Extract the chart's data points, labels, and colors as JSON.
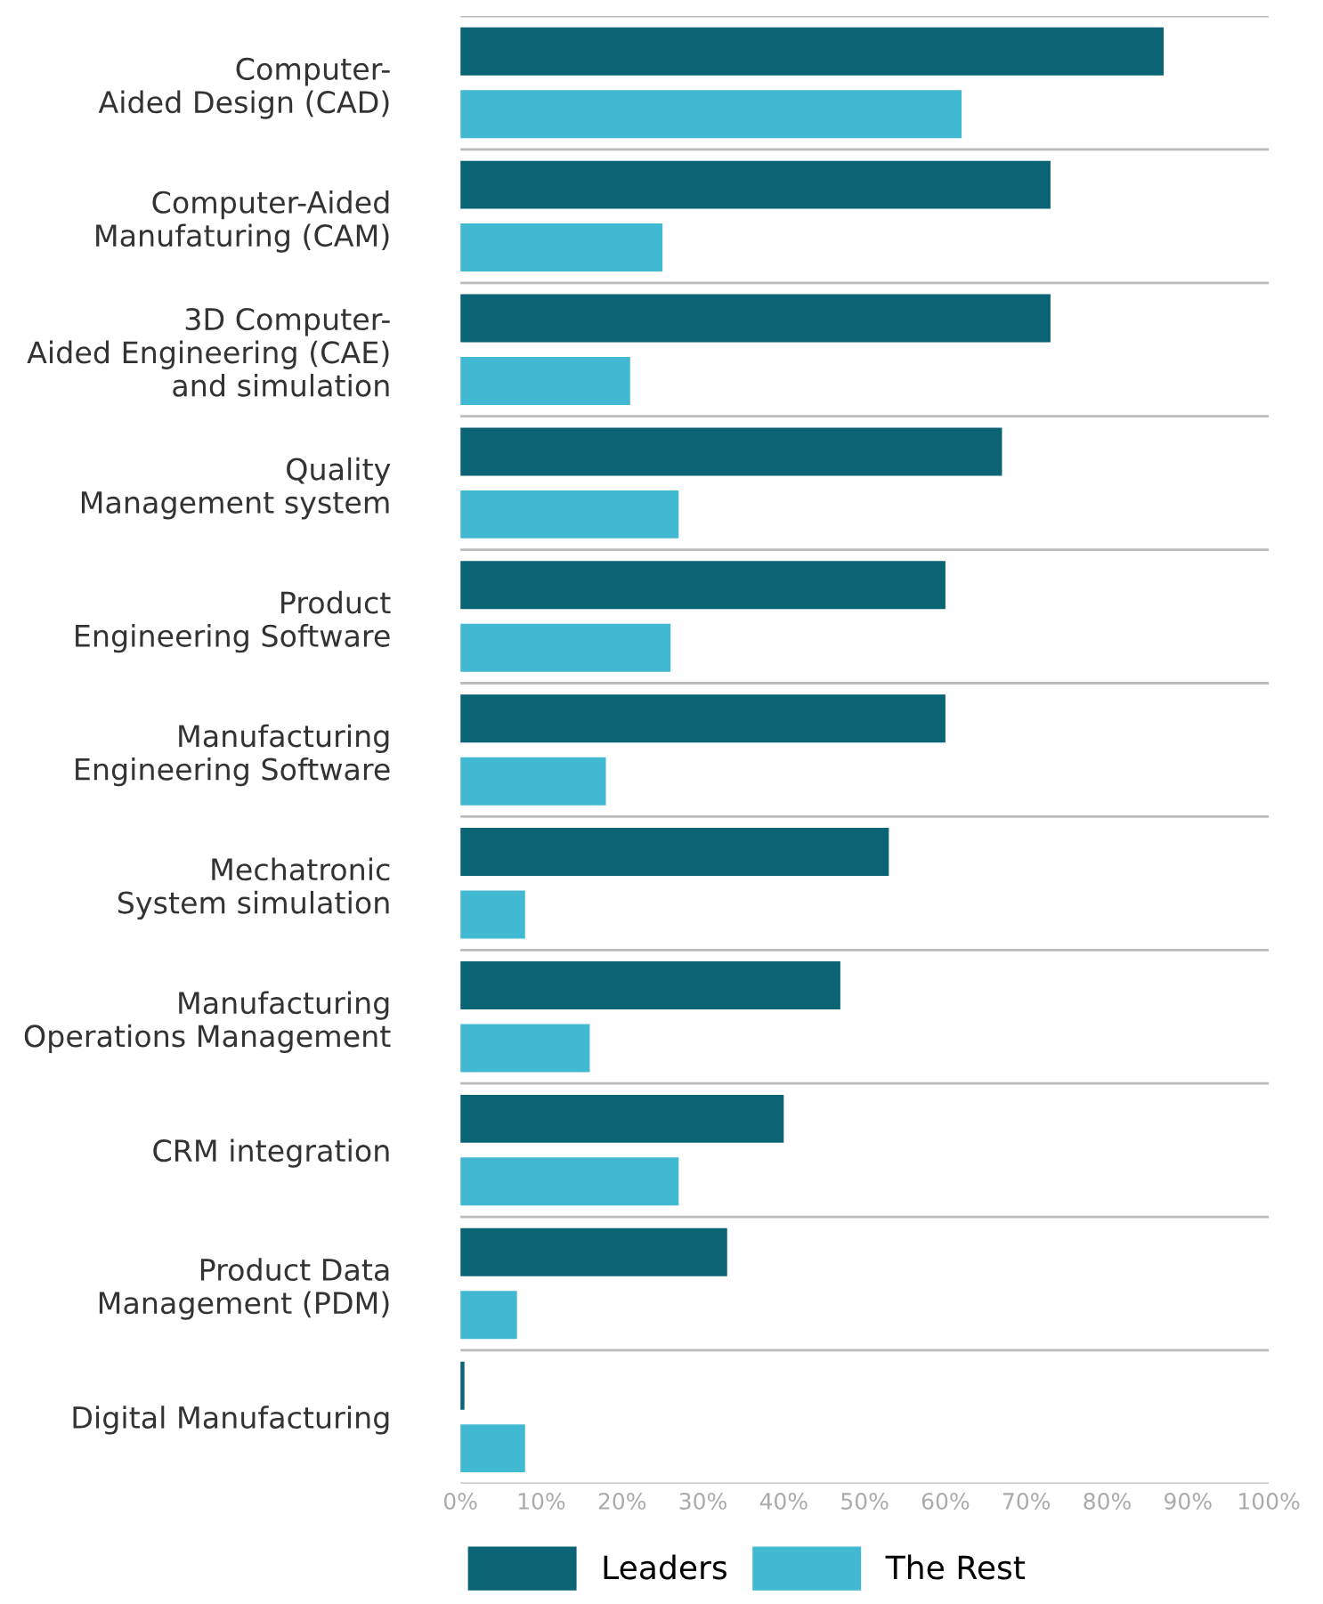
{
  "chart_data": {
    "type": "bar",
    "orientation": "horizontal",
    "categories": [
      "Computer-\nAided Design (CAD)",
      "Computer-Aided\nManufaturing (CAM)",
      "3D Computer-\nAided Engineering (CAE)\nand simulation",
      "Quality\nManagement system",
      "Product\nEngineering Software",
      "Manufacturing\nEngineering Software",
      "Mechatronic\nSystem simulation",
      "Manufacturing\nOperations Management",
      "CRM integration",
      "Product Data\nManagement (PDM)",
      "Digital Manufacturing"
    ],
    "series": [
      {
        "name": "Leaders",
        "color": "#0a6474",
        "values": [
          87,
          73,
          73,
          67,
          60,
          60,
          53,
          47,
          40,
          33,
          0.5
        ]
      },
      {
        "name": "The Rest",
        "color": "#42b9d2",
        "values": [
          62,
          25,
          21,
          27,
          26,
          18,
          8,
          16,
          27,
          7,
          8
        ]
      }
    ],
    "xlim": [
      0,
      100
    ],
    "xticks": [
      {
        "value": 0,
        "label": "0%"
      },
      {
        "value": 10,
        "label": "10%"
      },
      {
        "value": 20,
        "label": "20%"
      },
      {
        "value": 30,
        "label": "30%"
      },
      {
        "value": 40,
        "label": "40%"
      },
      {
        "value": 50,
        "label": "50%"
      },
      {
        "value": 60,
        "label": "60%"
      },
      {
        "value": 70,
        "label": "70%"
      },
      {
        "value": 80,
        "label": "80%"
      },
      {
        "value": 90,
        "label": "90%"
      },
      {
        "value": 100,
        "label": "100%"
      }
    ],
    "grid": "y",
    "legend": "bottom left"
  }
}
